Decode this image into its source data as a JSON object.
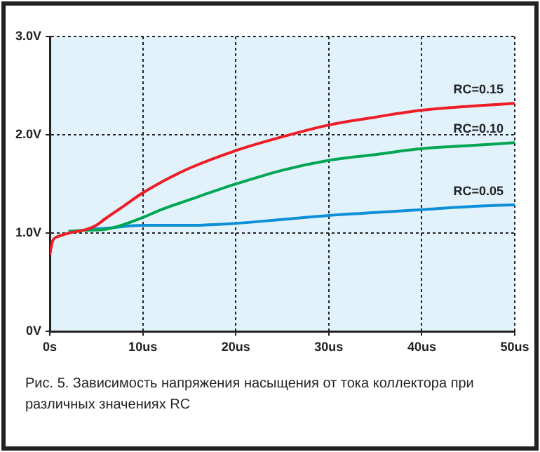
{
  "chart_data": {
    "type": "line",
    "xlim": [
      0,
      50
    ],
    "xticks": [
      {
        "value": 0,
        "label": "0s"
      },
      {
        "value": 10,
        "label": "10us"
      },
      {
        "value": 20,
        "label": "20us"
      },
      {
        "value": 30,
        "label": "30us"
      },
      {
        "value": 40,
        "label": "40us"
      },
      {
        "value": 50,
        "label": "50us"
      }
    ],
    "ylim": [
      0,
      3
    ],
    "yticks": [
      {
        "value": 0,
        "label": "0V"
      },
      {
        "value": 1,
        "label": "1.0V"
      },
      {
        "value": 2,
        "label": "2.0V"
      },
      {
        "value": 3,
        "label": "3.0V"
      }
    ],
    "grid": true,
    "legend": false,
    "marker": "none",
    "line_style": "solid",
    "series": [
      {
        "name": "RC=0.15",
        "color": "#ee1c25",
        "x": [
          0,
          0.3,
          1,
          2,
          3,
          4,
          5,
          6,
          8,
          10,
          12,
          15,
          20,
          25,
          30,
          35,
          40,
          45,
          50
        ],
        "values": [
          0.78,
          0.92,
          0.97,
          1.0,
          1.02,
          1.04,
          1.08,
          1.15,
          1.28,
          1.41,
          1.52,
          1.66,
          1.84,
          1.98,
          2.1,
          2.18,
          2.25,
          2.29,
          2.32
        ]
      },
      {
        "name": "RC=0.10",
        "color": "#00a651",
        "x": [
          2,
          4,
          6,
          8,
          10,
          12,
          15,
          20,
          25,
          30,
          35,
          40,
          45,
          50
        ],
        "values": [
          1.02,
          1.03,
          1.04,
          1.09,
          1.16,
          1.24,
          1.34,
          1.5,
          1.64,
          1.74,
          1.8,
          1.86,
          1.89,
          1.92
        ]
      },
      {
        "name": "RC=0.05",
        "color": "#0d8fd8",
        "x": [
          4,
          6,
          10,
          15,
          20,
          25,
          30,
          35,
          40,
          45,
          50
        ],
        "values": [
          1.04,
          1.05,
          1.08,
          1.08,
          1.1,
          1.14,
          1.18,
          1.21,
          1.24,
          1.27,
          1.29
        ]
      }
    ],
    "annotations": [
      "Рис. 5. Зависимость напряжения насыщения от тока коллектора при различных значениях RC"
    ]
  }
}
